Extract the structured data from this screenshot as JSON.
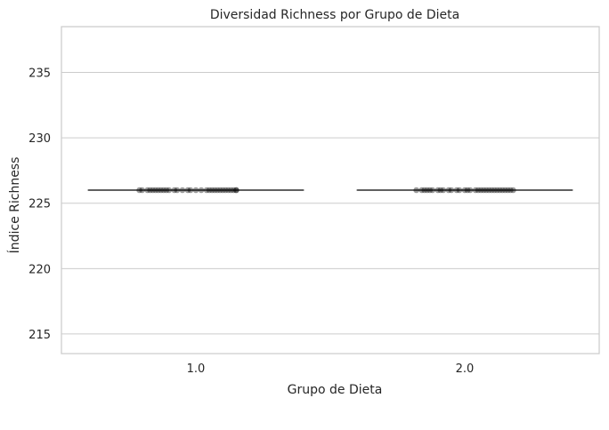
{
  "chart_data": {
    "type": "box",
    "title": "Diversidad Richness por Grupo de Dieta",
    "xlabel": "Grupo de Dieta",
    "ylabel": "Índice Richness",
    "categories": [
      "1.0",
      "2.0"
    ],
    "ylim": [
      213.5,
      238.5
    ],
    "yticks": [
      215,
      220,
      225,
      230,
      235
    ],
    "grid": true,
    "legend": "none",
    "boxes": [
      {
        "category": "1.0",
        "min": 226,
        "q1": 226,
        "median": 226,
        "q3": 226,
        "max": 226
      },
      {
        "category": "2.0",
        "min": 226,
        "q1": 226,
        "median": 226,
        "q3": 226,
        "max": 226
      }
    ],
    "points": [
      {
        "category": "1.0",
        "y": 226,
        "offsets": [
          -0.21,
          -0.2,
          -0.18,
          -0.17,
          -0.16,
          -0.15,
          -0.14,
          -0.13,
          -0.12,
          -0.11,
          -0.1,
          -0.08,
          -0.07,
          -0.05,
          -0.03,
          -0.02,
          0.0,
          0.02,
          0.04,
          0.05,
          0.06,
          0.07,
          0.08,
          0.09,
          0.1,
          0.11,
          0.12,
          0.13,
          0.14,
          0.15,
          0.15
        ]
      },
      {
        "category": "2.0",
        "y": 226,
        "offsets": [
          -0.18,
          -0.16,
          -0.15,
          -0.14,
          -0.13,
          -0.12,
          -0.1,
          -0.09,
          -0.08,
          -0.06,
          -0.05,
          -0.03,
          -0.02,
          0.0,
          0.01,
          0.02,
          0.04,
          0.05,
          0.06,
          0.07,
          0.08,
          0.09,
          0.1,
          0.11,
          0.12,
          0.13,
          0.14,
          0.15,
          0.16,
          0.17,
          0.18
        ]
      }
    ],
    "colors": {
      "axis": "#cccccc",
      "grid": "#cccccc",
      "box_line": "#3f3f3f",
      "point": "#000000",
      "text": "#262626"
    }
  }
}
